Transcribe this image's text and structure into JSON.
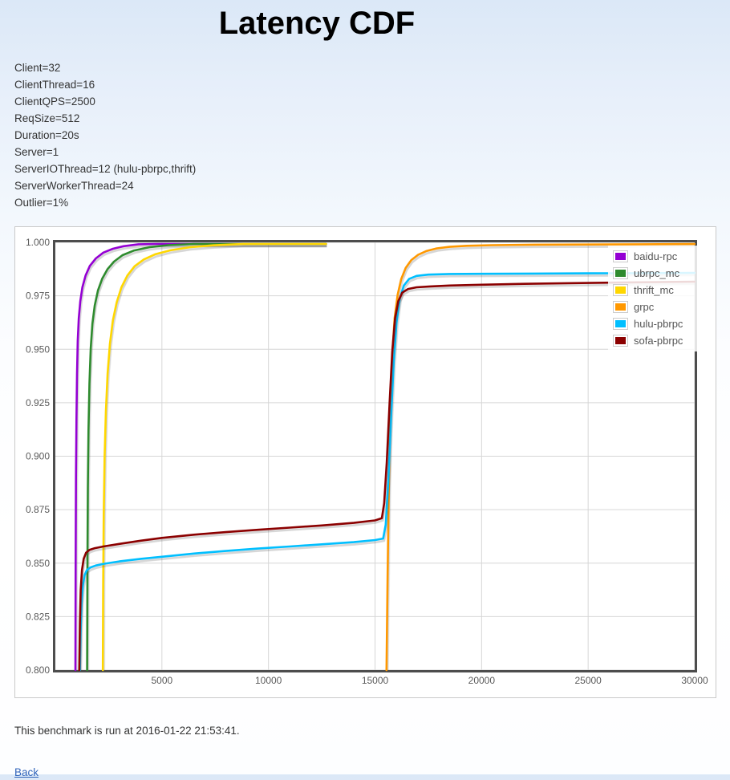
{
  "page": {
    "title": "Latency CDF"
  },
  "params": {
    "lines": [
      "Client=32",
      "ClientThread=16",
      "ClientQPS=2500",
      "ReqSize=512",
      "Duration=20s",
      "Server=1",
      "ServerIOThread=12 (hulu-pbrpc,thrift)",
      "ServerWorkerThread=24",
      "Outlier=1%"
    ]
  },
  "footer": {
    "note": "This benchmark is run at 2016-01-22 21:53:41.",
    "back_label": "Back",
    "link_color": "#3366bb"
  },
  "chart_data": {
    "type": "line",
    "title": "Latency CDF",
    "xlabel": "",
    "ylabel": "",
    "xlim": [
      0,
      30000
    ],
    "ylim": [
      0.8,
      1.0
    ],
    "grid": true,
    "legend_position": "top-right",
    "border_color": "#4d4d4d",
    "grid_color": "#d6d6d6",
    "tick_label_color": "#5a5a5a",
    "x_ticks": [
      5000,
      10000,
      15000,
      20000,
      25000,
      30000
    ],
    "x_tick_labels": [
      "5000",
      "10000",
      "15000",
      "20000",
      "25000",
      "30000"
    ],
    "y_ticks": [
      1.0,
      0.975,
      0.95,
      0.925,
      0.9,
      0.875,
      0.85,
      0.825,
      0.8
    ],
    "y_tick_labels": [
      "1.000",
      "0.975",
      "0.950",
      "0.925",
      "0.900",
      "0.875",
      "0.850",
      "0.825",
      "0.800"
    ],
    "series": [
      {
        "name": "baidu-rpc",
        "color": "#9400d3",
        "points": [
          [
            940,
            0.8
          ],
          [
            952,
            0.85
          ],
          [
            968,
            0.89
          ],
          [
            990,
            0.917
          ],
          [
            1015,
            0.938
          ],
          [
            1050,
            0.954
          ],
          [
            1100,
            0.9645
          ],
          [
            1170,
            0.9725
          ],
          [
            1270,
            0.979
          ],
          [
            1420,
            0.9845
          ],
          [
            1620,
            0.989
          ],
          [
            1900,
            0.9925
          ],
          [
            2250,
            0.9952
          ],
          [
            2700,
            0.997
          ],
          [
            3200,
            0.9982
          ],
          [
            3900,
            0.9991
          ],
          [
            4800,
            0.9996
          ],
          [
            6000,
            0.9999
          ],
          [
            8000,
            1.0
          ],
          [
            12700,
            1.0
          ]
        ]
      },
      {
        "name": "ubrpc_mc",
        "color": "#2e8b2e",
        "points": [
          [
            1490,
            0.8
          ],
          [
            1505,
            0.85
          ],
          [
            1525,
            0.885
          ],
          [
            1555,
            0.912
          ],
          [
            1600,
            0.934
          ],
          [
            1660,
            0.9505
          ],
          [
            1740,
            0.962
          ],
          [
            1850,
            0.9705
          ],
          [
            2000,
            0.9775
          ],
          [
            2200,
            0.983
          ],
          [
            2450,
            0.9875
          ],
          [
            2750,
            0.991
          ],
          [
            3150,
            0.994
          ],
          [
            3700,
            0.9962
          ],
          [
            4400,
            0.9977
          ],
          [
            5300,
            0.9987
          ],
          [
            6500,
            0.9993
          ],
          [
            8000,
            0.9997
          ],
          [
            9500,
            1.0
          ],
          [
            12700,
            1.0
          ]
        ]
      },
      {
        "name": "thrift_mc",
        "color": "#ffd700",
        "points": [
          [
            2230,
            0.8
          ],
          [
            2245,
            0.84
          ],
          [
            2270,
            0.873
          ],
          [
            2310,
            0.9
          ],
          [
            2370,
            0.921
          ],
          [
            2450,
            0.9385
          ],
          [
            2560,
            0.9525
          ],
          [
            2700,
            0.9635
          ],
          [
            2880,
            0.972
          ],
          [
            3100,
            0.979
          ],
          [
            3380,
            0.9845
          ],
          [
            3720,
            0.9888
          ],
          [
            4150,
            0.992
          ],
          [
            4700,
            0.9945
          ],
          [
            5400,
            0.9963
          ],
          [
            6300,
            0.9977
          ],
          [
            7400,
            0.9986
          ],
          [
            8800,
            0.9992
          ],
          [
            10500,
            0.9996
          ],
          [
            12700,
            1.0
          ]
        ]
      },
      {
        "name": "grpc",
        "color": "#ff9800",
        "points": [
          [
            15540,
            0.8
          ],
          [
            15590,
            0.845
          ],
          [
            15650,
            0.888
          ],
          [
            15720,
            0.922
          ],
          [
            15810,
            0.9475
          ],
          [
            15920,
            0.9645
          ],
          [
            16060,
            0.9755
          ],
          [
            16230,
            0.9829
          ],
          [
            16440,
            0.9881
          ],
          [
            16700,
            0.9917
          ],
          [
            17020,
            0.9942
          ],
          [
            17420,
            0.996
          ],
          [
            17900,
            0.9972
          ],
          [
            18500,
            0.9979
          ],
          [
            19300,
            0.9984
          ],
          [
            20500,
            0.9987
          ],
          [
            22500,
            0.9989
          ],
          [
            25000,
            0.999
          ],
          [
            27500,
            0.9991
          ],
          [
            30000,
            0.9992
          ]
        ]
      },
      {
        "name": "hulu-pbrpc",
        "color": "#00bfff",
        "points": [
          [
            1150,
            0.8
          ],
          [
            1185,
            0.818
          ],
          [
            1230,
            0.831
          ],
          [
            1290,
            0.8395
          ],
          [
            1370,
            0.8443
          ],
          [
            1480,
            0.8468
          ],
          [
            1650,
            0.848
          ],
          [
            1900,
            0.8489
          ],
          [
            2300,
            0.8497
          ],
          [
            3000,
            0.8508
          ],
          [
            4000,
            0.852
          ],
          [
            5000,
            0.853
          ],
          [
            6500,
            0.8545
          ],
          [
            8000,
            0.8557
          ],
          [
            9500,
            0.8568
          ],
          [
            11000,
            0.8578
          ],
          [
            12500,
            0.8588
          ],
          [
            14000,
            0.8598
          ],
          [
            15000,
            0.8608
          ],
          [
            15380,
            0.8615
          ],
          [
            15500,
            0.868
          ],
          [
            15620,
            0.888
          ],
          [
            15750,
            0.9175
          ],
          [
            15880,
            0.9445
          ],
          [
            16010,
            0.9625
          ],
          [
            16160,
            0.9735
          ],
          [
            16350,
            0.9798
          ],
          [
            16600,
            0.9829
          ],
          [
            16950,
            0.9843
          ],
          [
            17500,
            0.9849
          ],
          [
            18500,
            0.9852
          ],
          [
            20000,
            0.9853
          ],
          [
            22500,
            0.9854
          ],
          [
            25000,
            0.9855
          ],
          [
            27500,
            0.9856
          ],
          [
            30000,
            0.9857
          ]
        ]
      },
      {
        "name": "sofa-pbrpc",
        "color": "#8b0000",
        "points": [
          [
            1120,
            0.8
          ],
          [
            1150,
            0.822
          ],
          [
            1190,
            0.8375
          ],
          [
            1250,
            0.8468
          ],
          [
            1330,
            0.852
          ],
          [
            1440,
            0.8549
          ],
          [
            1600,
            0.8562
          ],
          [
            1850,
            0.857
          ],
          [
            2250,
            0.8578
          ],
          [
            3000,
            0.859
          ],
          [
            4000,
            0.8605
          ],
          [
            5000,
            0.8618
          ],
          [
            6500,
            0.8633
          ],
          [
            8000,
            0.8645
          ],
          [
            9500,
            0.8656
          ],
          [
            11000,
            0.8666
          ],
          [
            12500,
            0.8676
          ],
          [
            14000,
            0.8688
          ],
          [
            15000,
            0.87
          ],
          [
            15320,
            0.871
          ],
          [
            15430,
            0.878
          ],
          [
            15550,
            0.897
          ],
          [
            15680,
            0.9245
          ],
          [
            15810,
            0.949
          ],
          [
            15940,
            0.9645
          ],
          [
            16090,
            0.9725
          ],
          [
            16280,
            0.9765
          ],
          [
            16550,
            0.9782
          ],
          [
            16950,
            0.979
          ],
          [
            17600,
            0.9794
          ],
          [
            18500,
            0.9798
          ],
          [
            20000,
            0.9802
          ],
          [
            22000,
            0.9806
          ],
          [
            24000,
            0.9809
          ],
          [
            26500,
            0.9812
          ],
          [
            30000,
            0.9816
          ]
        ]
      }
    ]
  }
}
